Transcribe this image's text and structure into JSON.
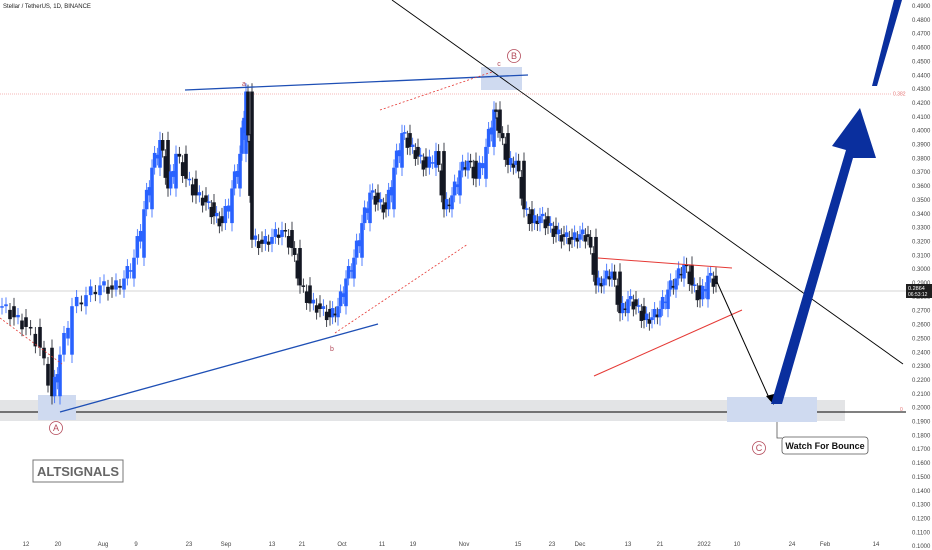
{
  "header": {
    "symbol_title": "Stellar / TetherUS, 1D, BINANCE"
  },
  "watermark": {
    "text": "ALTSIGNALS"
  },
  "annotations": {
    "wave_A": "A",
    "wave_B": "B",
    "wave_C": "C",
    "sub_a": "a",
    "sub_b": "b",
    "sub_c": "c",
    "callout": "Watch For Bounce",
    "fib_top_label": "0.382",
    "fib_bottom_label": "0"
  },
  "price_tags": {
    "last_price": "0.2864",
    "countdown": "06:53:12"
  },
  "colors": {
    "up": "#2962ff",
    "down": "#131722",
    "blue_line": "#1e4fb5",
    "red_line": "#e53935",
    "arrow": "#0a2f9e",
    "zone": "#cfdaf0",
    "support_band": "#e3e4e6",
    "fib_line": "#f4a0a0"
  },
  "chart_data": {
    "type": "candlestick",
    "title": "Stellar / TetherUS, 1D, BINANCE",
    "ylim": [
      0.09,
      0.49
    ],
    "y_ticks": [
      "0.4900",
      "0.4800",
      "0.4700",
      "0.4600",
      "0.4500",
      "0.4400",
      "0.4300",
      "0.4200",
      "0.4100",
      "0.4000",
      "0.3900",
      "0.3800",
      "0.3700",
      "0.3600",
      "0.3500",
      "0.3400",
      "0.3300",
      "0.3200",
      "0.3100",
      "0.3000",
      "0.2900",
      "0.2800",
      "0.2700",
      "0.2600",
      "0.2500",
      "0.2400",
      "0.2300",
      "0.2200",
      "0.2100",
      "0.2000",
      "0.1900",
      "0.1800",
      "0.1700",
      "0.1600",
      "0.1500",
      "0.1400",
      "0.1300",
      "0.1200",
      "0.1100",
      "0.1000"
    ],
    "x_ticks": [
      "12",
      "20",
      "Aug",
      "9",
      "23",
      "Sep",
      "13",
      "21",
      "Oct",
      "11",
      "19",
      "Nov",
      "15",
      "23",
      "Dec",
      "13",
      "21",
      "2022",
      "10",
      "24",
      "Feb",
      "14"
    ],
    "support_level": 0.2,
    "fib_level_0382": 0.4286,
    "last_price": 0.2864
  }
}
